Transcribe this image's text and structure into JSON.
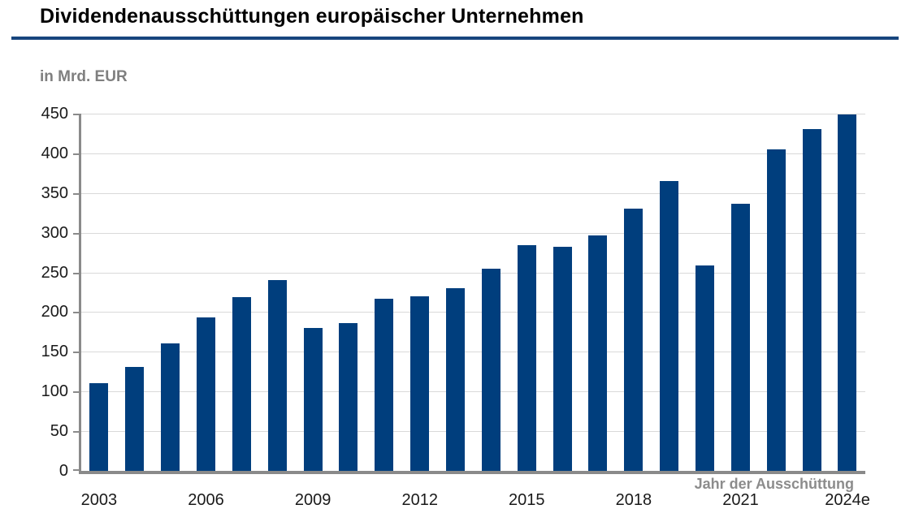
{
  "header": {
    "title": "Dividendenausschüttungen europäischer Unternehmen",
    "subtitle": "in Mrd. EUR"
  },
  "colors": {
    "bar": "#003e7d",
    "title_rule": "#17457e",
    "axis": "#8a8a8a",
    "gridline": "#d9d9d9",
    "subtitle_text": "#7f7f7f",
    "axis_label_text": "#8c8c8c",
    "tick_label_text": "#1a1a1a"
  },
  "chart_data": {
    "type": "bar",
    "title": "Dividendenausschüttungen europäischer Unternehmen",
    "subtitle": "in Mrd. EUR",
    "xlabel": "Jahr der Ausschüttung",
    "ylabel": "in Mrd. EUR",
    "categories": [
      "2003",
      "2004",
      "2005",
      "2006",
      "2007",
      "2008",
      "2009",
      "2010",
      "2011",
      "2012",
      "2013",
      "2014",
      "2015",
      "2016",
      "2017",
      "2018",
      "2019",
      "2020",
      "2021",
      "2022",
      "2023",
      "2024e"
    ],
    "values": [
      110,
      131,
      161,
      193,
      219,
      240,
      180,
      186,
      217,
      220,
      230,
      255,
      284,
      282,
      297,
      330,
      365,
      259,
      336,
      405,
      431,
      449
    ],
    "ylim": [
      0,
      450
    ],
    "ytick_step": 50,
    "yticks": [
      0,
      50,
      100,
      150,
      200,
      250,
      300,
      350,
      400,
      450
    ],
    "xticks_shown": [
      "2003",
      "2006",
      "2009",
      "2012",
      "2015",
      "2018",
      "2021",
      "2024e"
    ],
    "grid": "horizontal",
    "legend": "none",
    "bar_color": "#003e7d"
  }
}
